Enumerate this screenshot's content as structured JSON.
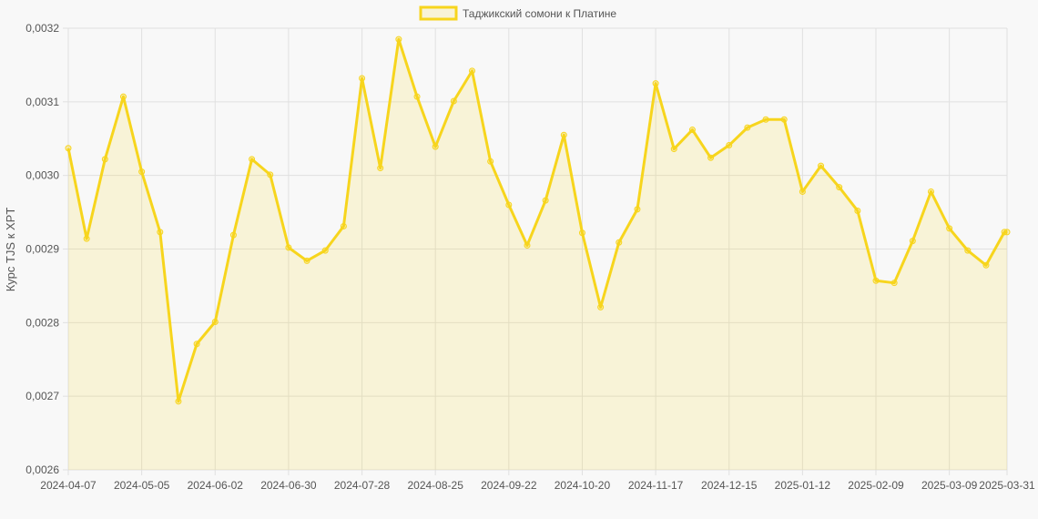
{
  "chart_data": {
    "type": "line",
    "title": "",
    "xlabel": "",
    "ylabel": "Курс TJS к XPT",
    "ylim": [
      0.0026,
      0.0032
    ],
    "y_ticks": [
      "0,0026",
      "0,0027",
      "0,0028",
      "0,0029",
      "0,0030",
      "0,0031",
      "0,0032"
    ],
    "x_ticks": [
      "2024-04-07",
      "2024-05-05",
      "2024-06-02",
      "2024-06-30",
      "2024-07-28",
      "2024-08-25",
      "2024-09-22",
      "2024-10-20",
      "2024-11-17",
      "2024-12-15",
      "2025-01-12",
      "2025-02-09",
      "2025-03-09",
      "2025-03-31"
    ],
    "grid": true,
    "legend_position": "top",
    "series": [
      {
        "name": "Таджикский сомони к Платине",
        "color": "#f7d51d",
        "fill": "rgba(247,213,29,0.15)",
        "x": [
          "2024-04-07",
          "2024-04-14",
          "2024-04-21",
          "2024-04-28",
          "2024-05-05",
          "2024-05-12",
          "2024-05-19",
          "2024-05-26",
          "2024-06-02",
          "2024-06-09",
          "2024-06-16",
          "2024-06-23",
          "2024-06-30",
          "2024-07-07",
          "2024-07-14",
          "2024-07-21",
          "2024-07-28",
          "2024-08-04",
          "2024-08-11",
          "2024-08-18",
          "2024-08-25",
          "2024-09-01",
          "2024-09-08",
          "2024-09-15",
          "2024-09-22",
          "2024-09-29",
          "2024-10-06",
          "2024-10-13",
          "2024-10-20",
          "2024-10-27",
          "2024-11-03",
          "2024-11-10",
          "2024-11-17",
          "2024-11-24",
          "2024-12-01",
          "2024-12-08",
          "2024-12-15",
          "2024-12-22",
          "2024-12-29",
          "2025-01-05",
          "2025-01-12",
          "2025-01-19",
          "2025-01-26",
          "2025-02-02",
          "2025-02-09",
          "2025-02-16",
          "2025-02-23",
          "2025-03-02",
          "2025-03-09",
          "2025-03-16",
          "2025-03-23",
          "2025-03-30",
          "2025-03-31"
        ],
        "values": [
          0.003037,
          0.002914,
          0.003022,
          0.003107,
          0.003005,
          0.002923,
          0.002693,
          0.002771,
          0.002801,
          0.002919,
          0.003022,
          0.003001,
          0.002902,
          0.002884,
          0.002898,
          0.002931,
          0.003132,
          0.00301,
          0.003185,
          0.003107,
          0.003039,
          0.003101,
          0.003142,
          0.003019,
          0.00296,
          0.002905,
          0.002966,
          0.003055,
          0.002922,
          0.002821,
          0.002909,
          0.002954,
          0.003125,
          0.003036,
          0.003062,
          0.003024,
          0.003041,
          0.003065,
          0.003076,
          0.003076,
          0.002978,
          0.003013,
          0.002984,
          0.002952,
          0.002857,
          0.002854,
          0.002911,
          0.002978,
          0.002928,
          0.002898,
          0.002878,
          0.002923,
          0.002923
        ]
      }
    ]
  }
}
